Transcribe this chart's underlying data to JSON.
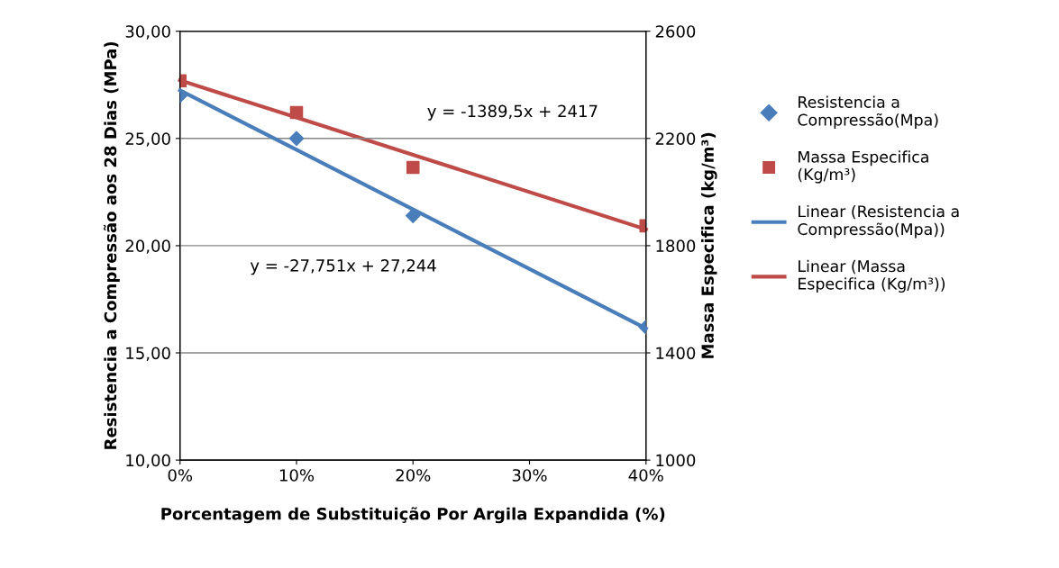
{
  "chart_data": {
    "type": "scatter",
    "xlabel": "Porcentagem de Substituição Por Argila Expandida (%)",
    "ylabel": "Resistencia a Compressão aos 28 Dias (MPa)",
    "y2label": "Massa Especifica (kg/m³)",
    "x": [
      0,
      0.1,
      0.2,
      0.4
    ],
    "xlim": [
      0,
      0.4
    ],
    "xticks": [
      {
        "value": 0,
        "label": "0%"
      },
      {
        "value": 0.1,
        "label": "10%"
      },
      {
        "value": 0.2,
        "label": "20%"
      },
      {
        "value": 0.3,
        "label": "30%"
      },
      {
        "value": 0.4,
        "label": "40%"
      }
    ],
    "ylim": [
      10,
      30
    ],
    "yticks": [
      {
        "value": 10,
        "label": "10,00"
      },
      {
        "value": 15,
        "label": "15,00"
      },
      {
        "value": 20,
        "label": "20,00"
      },
      {
        "value": 25,
        "label": "25,00"
      },
      {
        "value": 30,
        "label": "30,00"
      }
    ],
    "y2lim": [
      1000,
      2600
    ],
    "y2ticks": [
      1000,
      1400,
      1800,
      2200,
      2600
    ],
    "grid": "y",
    "legend": "right",
    "series": [
      {
        "name": "Resistencia a\nCompressão(Mpa)",
        "color": "#4a7ebb",
        "marker": "diamond",
        "values": [
          27.0,
          25.0,
          21.4,
          16.2
        ]
      },
      {
        "name": "Massa Especifica\n(Kg/m³)",
        "axis": "y2",
        "color": "#be4b48",
        "marker": "square",
        "values": [
          2415,
          2297,
          2092,
          1874
        ]
      },
      {
        "name": "Linear (Resistencia a\nCompressão(Mpa))",
        "type": "line",
        "color": "#4a7ebb",
        "marker": "none",
        "values": [
          27.24,
          24.47,
          21.69,
          16.14
        ]
      },
      {
        "name": "Linear (Massa\nEspecifica (Kg/m³))",
        "type": "line",
        "axis": "y2",
        "color": "#be4b48",
        "marker": "none",
        "values": [
          2417,
          2278,
          2139,
          1861
        ]
      }
    ],
    "annotations": [
      "y = -1389,5x + 2417",
      "y = -27,751x + 27,244"
    ]
  }
}
